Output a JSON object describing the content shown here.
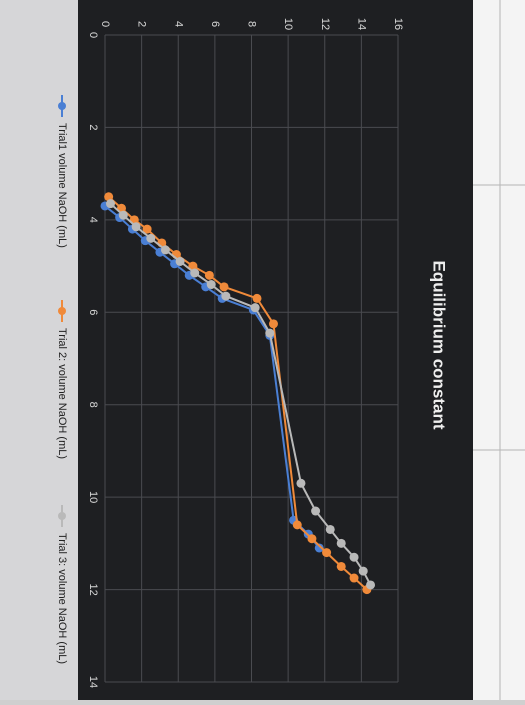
{
  "chart_data": {
    "type": "line",
    "title": "Equilibrium constant",
    "xlim": [
      0,
      14
    ],
    "xticks": [
      0,
      2,
      4,
      6,
      8,
      10,
      12,
      14
    ],
    "ylim": [
      0,
      16
    ],
    "yticks": [
      0,
      2,
      4,
      6,
      8,
      10,
      12,
      14,
      16
    ],
    "grid": true,
    "legend": "bottom",
    "series": [
      {
        "name": "Trial1 volume NaOH (mL)",
        "color": "#4a7fd4",
        "x": [
          3.7,
          3.95,
          4.2,
          4.45,
          4.7,
          4.95,
          5.2,
          5.45,
          5.7,
          5.95,
          6.5,
          10.5,
          10.8,
          11.1
        ],
        "values": [
          0,
          0.8,
          1.5,
          2.2,
          3.0,
          3.8,
          4.6,
          5.5,
          6.4,
          8.1,
          9.0,
          10.3,
          11.1,
          11.7
        ]
      },
      {
        "name": "Trial 2: volume NaOH (mL)",
        "color": "#f08a3a",
        "x": [
          3.5,
          3.75,
          4.0,
          4.2,
          4.5,
          4.75,
          5.0,
          5.2,
          5.45,
          5.7,
          6.25,
          10.6,
          10.9,
          11.2,
          11.5,
          11.75,
          12.0
        ],
        "values": [
          0.2,
          0.9,
          1.6,
          2.3,
          3.1,
          3.9,
          4.8,
          5.7,
          6.5,
          8.3,
          9.2,
          10.5,
          11.3,
          12.1,
          12.9,
          13.6,
          14.3
        ]
      },
      {
        "name": "Trial 3: volume NaOH (mL)",
        "color": "#b9b9b9",
        "x": [
          3.65,
          3.9,
          4.15,
          4.4,
          4.65,
          4.9,
          5.15,
          5.4,
          5.65,
          5.9,
          6.45,
          9.7,
          10.3,
          10.7,
          11.0,
          11.3,
          11.6,
          11.9
        ],
        "values": [
          0.3,
          1.0,
          1.7,
          2.5,
          3.3,
          4.1,
          4.9,
          5.8,
          6.6,
          8.2,
          9.0,
          10.7,
          11.5,
          12.3,
          12.9,
          13.6,
          14.1,
          14.5
        ]
      }
    ]
  }
}
